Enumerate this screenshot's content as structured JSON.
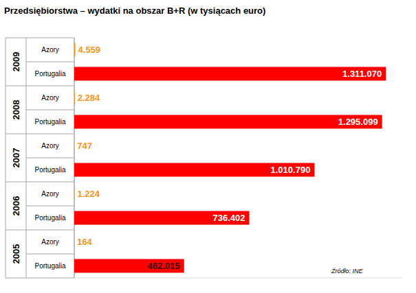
{
  "chart_data": {
    "type": "bar",
    "orientation": "horizontal",
    "title": "Przedsiębiorstwa  – wydatki na obszar B+R (w tysiącach euro)",
    "categories": [
      "2009",
      "2008",
      "2007",
      "2006",
      "2005"
    ],
    "series": [
      {
        "name": "Azory",
        "color": "#f7941d",
        "values": [
          4559,
          2284,
          747,
          1224,
          164
        ],
        "value_labels": [
          "4.559",
          "2.284",
          "747",
          "1.224",
          "164"
        ]
      },
      {
        "name": "Portugalia",
        "color": "#ff0000",
        "values": [
          1311070,
          1295099,
          1010790,
          736402,
          462015
        ],
        "value_labels": [
          "1.311.070",
          "1.295.099",
          "1.010.790",
          "736.402",
          "462.015"
        ]
      }
    ],
    "xlim": [
      0,
      1380000
    ],
    "data_labels": true,
    "tick_labels": "y",
    "grid": false,
    "annotations": [
      "Źródło: INE"
    ]
  }
}
